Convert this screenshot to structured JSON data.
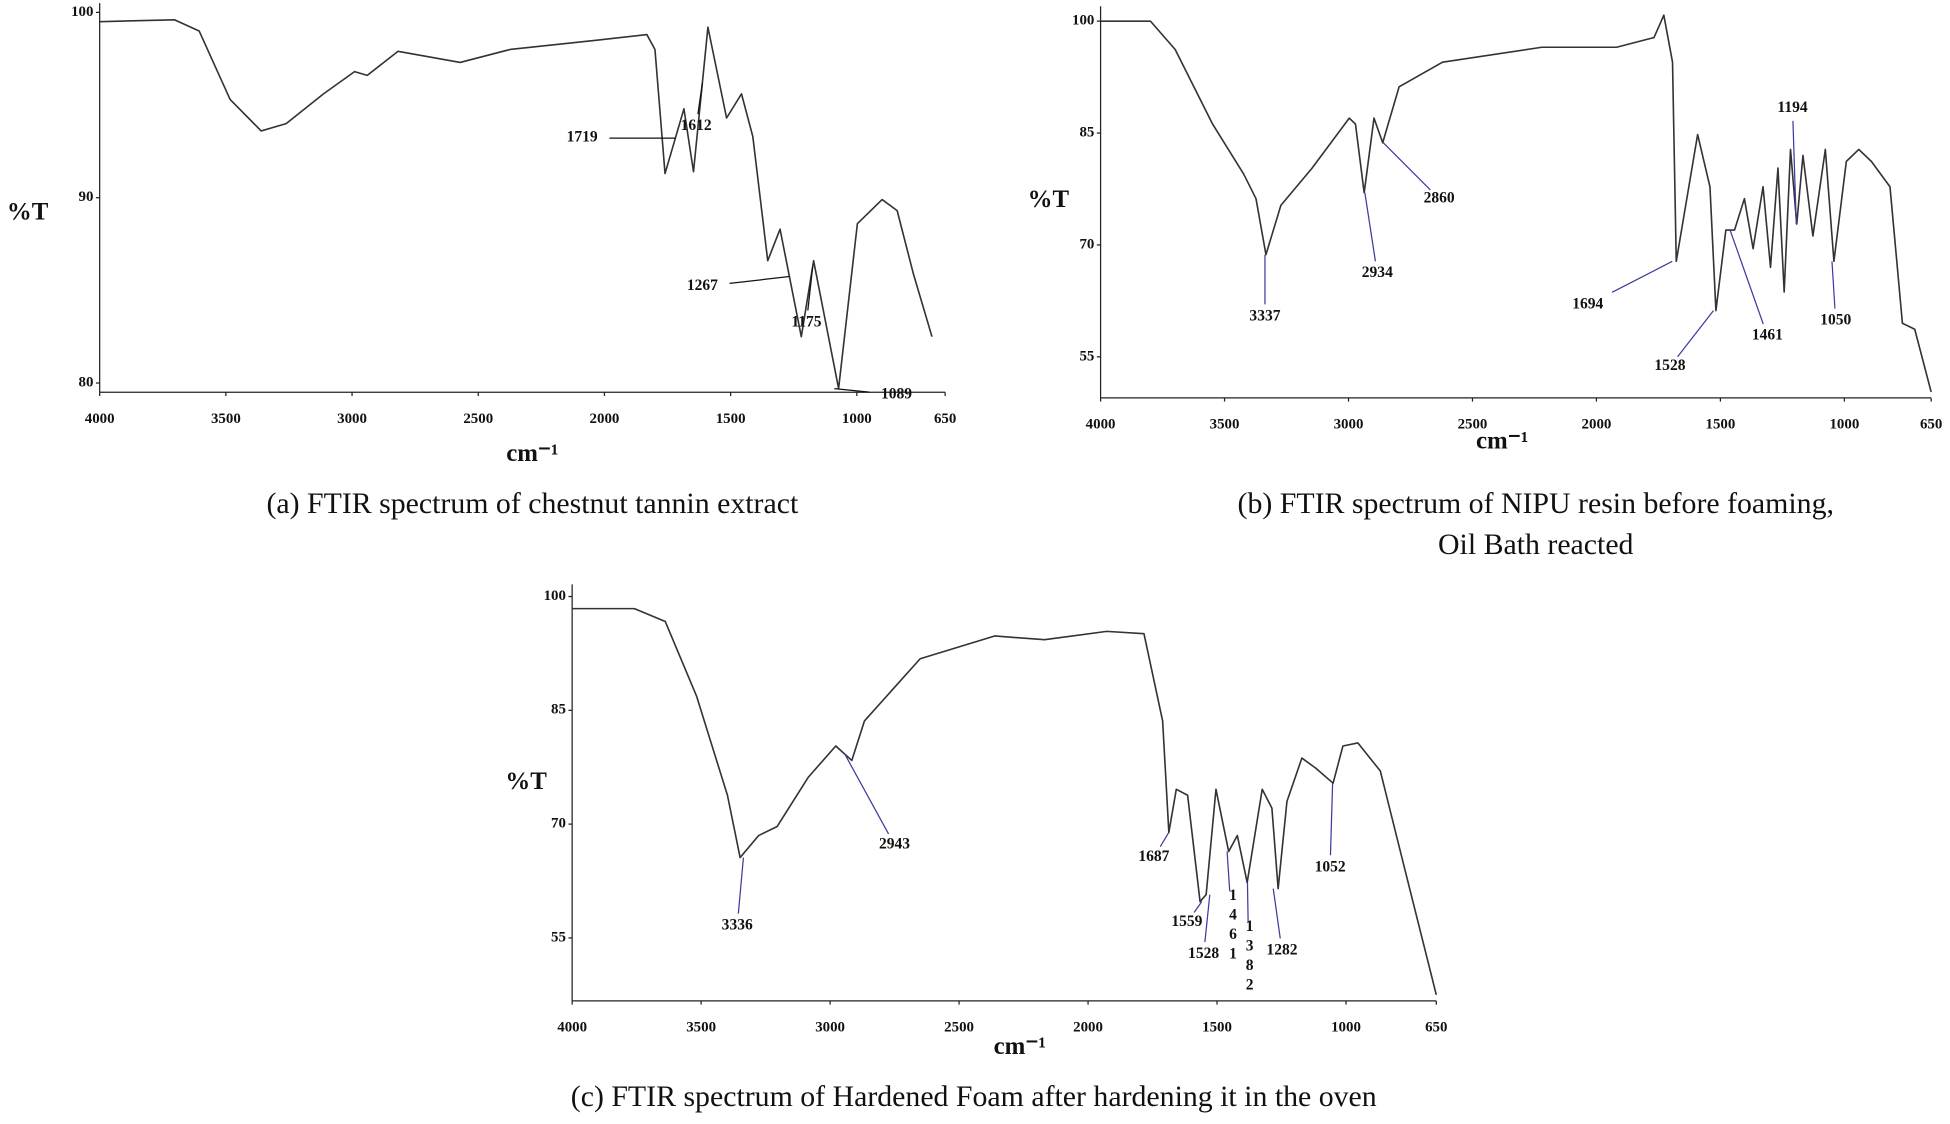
{
  "chart_data": [
    {
      "type": "line",
      "caption": [
        "(a) FTIR spectrum of chestnut tannin extract"
      ],
      "ylabel": "%T",
      "xlabel": "cm⁻¹",
      "x": [
        4000,
        3704,
        3606,
        3483,
        3360,
        3261,
        3113,
        2990,
        2940,
        2818,
        2572,
        2374,
        2030,
        1832,
        1800,
        1760,
        1685,
        1647,
        1590,
        1516,
        1457,
        1412,
        1353,
        1304,
        1220,
        1171,
        1072,
        998,
        900,
        840,
        776,
        702
      ],
      "values": [
        99.5,
        99.6,
        99,
        95.3,
        93.6,
        94,
        95.6,
        96.8,
        96.6,
        97.9,
        97.3,
        98,
        98.5,
        98.8,
        98,
        91.3,
        94.8,
        91.4,
        99.2,
        94.3,
        95.6,
        93.3,
        86.6,
        88.3,
        82.5,
        86.6,
        79.7,
        88.6,
        89.9,
        89.3,
        85.9,
        82.5
      ],
      "color": "#333333",
      "xlim": [
        4000,
        650
      ],
      "ylim": [
        79.5,
        100.5
      ],
      "xticks": [
        4000,
        3500,
        3000,
        2500,
        2000,
        1500,
        1000,
        650
      ],
      "yticks": [
        80,
        90,
        100
      ],
      "peaks": [
        1719,
        1612,
        1267,
        1175,
        1089
      ],
      "leader_color": "#111111"
    },
    {
      "type": "line",
      "caption": [
        "(b) FTIR spectrum of NIPU resin before foaming,",
        "Oil Bath reacted"
      ],
      "ylabel": "%T",
      "xlabel": "cm⁻¹",
      "x": [
        4000,
        3799,
        3699,
        3548,
        3423,
        3373,
        3333,
        3273,
        3147,
        2997,
        2972,
        2937,
        2897,
        2862,
        2796,
        2621,
        2220,
        1919,
        1768,
        1728,
        1693,
        1678,
        1592,
        1542,
        1518,
        1478,
        1443,
        1403,
        1368,
        1328,
        1298,
        1268,
        1243,
        1217,
        1192,
        1167,
        1127,
        1077,
        1042,
        992,
        942,
        891,
        816,
        766,
        716,
        650
      ],
      "values": [
        100,
        100,
        96.2,
        86.2,
        79.5,
        76.2,
        68.7,
        75.3,
        80.3,
        87,
        86.2,
        77,
        87,
        83.7,
        91.2,
        94.5,
        96.5,
        96.5,
        97.8,
        100.8,
        94.5,
        67.8,
        84.8,
        77.8,
        61.2,
        72,
        72,
        76.2,
        69.5,
        77.8,
        67,
        80.3,
        63.7,
        82.8,
        72.8,
        82,
        71.2,
        82.8,
        67.8,
        81.2,
        82.8,
        81.2,
        77.8,
        59.5,
        58.7,
        50.3
      ],
      "color": "#333333",
      "xlim": [
        4000,
        650
      ],
      "ylim": [
        49.5,
        102
      ],
      "xticks": [
        4000,
        3500,
        3000,
        2500,
        2000,
        1500,
        1000,
        650
      ],
      "yticks": [
        55,
        70,
        85,
        100
      ],
      "peaks": [
        3337,
        2934,
        2860,
        1694,
        1528,
        1461,
        1194,
        1050
      ],
      "leader_color": "#3c3ca0"
    },
    {
      "type": "line",
      "caption": [
        "(c) FTIR spectrum of Hardened Foam after hardening it in the oven"
      ],
      "ylabel": "%T",
      "xlabel": "cm⁻¹",
      "x": [
        4000,
        3759,
        3639,
        3518,
        3398,
        3349,
        3277,
        3205,
        3084,
        2978,
        2916,
        2867,
        2651,
        2362,
        2169,
        1928,
        1783,
        1711,
        1687,
        1658,
        1614,
        1566,
        1542,
        1504,
        1455,
        1421,
        1383,
        1325,
        1287,
        1263,
        1229,
        1171,
        1118,
        1050,
        1012,
        954,
        867,
        771,
        650
      ],
      "values": [
        98.4,
        98.4,
        96.7,
        86.9,
        73.8,
        65.6,
        68.5,
        69.7,
        76.2,
        80.3,
        78.4,
        83.6,
        91.8,
        94.8,
        94.3,
        95.4,
        95.1,
        83.6,
        68.9,
        74.6,
        73.8,
        59.8,
        60.7,
        74.6,
        66.4,
        68.5,
        62.3,
        74.6,
        72.1,
        61.5,
        73,
        78.7,
        77.4,
        75.4,
        80.3,
        80.7,
        77,
        63.9,
        47.5
      ],
      "color": "#333333",
      "xlim": [
        4000,
        650
      ],
      "ylim": [
        46.7,
        101.6
      ],
      "xticks": [
        4000,
        3500,
        3000,
        2500,
        2000,
        1500,
        1000,
        650
      ],
      "yticks": [
        55,
        70,
        85,
        100
      ],
      "peaks": [
        3336,
        2943,
        1687,
        1559,
        1528,
        1461,
        1382,
        1282,
        1052
      ],
      "leader_color": "#3c3ca0"
    }
  ]
}
